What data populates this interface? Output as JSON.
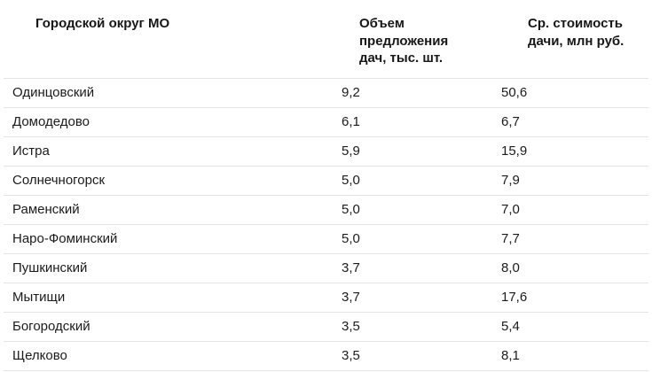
{
  "chart_data": {
    "type": "table",
    "title": "",
    "columns": [
      "Городской округ МО",
      "Объем предложения дач, тыс. шт.",
      "Ср. стоимость дачи, млн руб."
    ],
    "rows": [
      [
        "Одинцовский",
        "9,2",
        "50,6"
      ],
      [
        "Домодедово",
        "6,1",
        "6,7"
      ],
      [
        "Истра",
        "5,9",
        "15,9"
      ],
      [
        "Солнечногорск",
        "5,0",
        "7,9"
      ],
      [
        "Раменский",
        "5,0",
        "7,0"
      ],
      [
        "Наро-Фоминский",
        "5,0",
        "7,7"
      ],
      [
        "Пушкинский",
        "3,7",
        "8,0"
      ],
      [
        "Мытищи",
        "3,7",
        "17,6"
      ],
      [
        "Богородский",
        "3,5",
        "5,4"
      ],
      [
        "Щелково",
        "3,5",
        "8,1"
      ]
    ]
  },
  "style": {
    "text_color": "#1b1b1b",
    "divider_color": "#e4e4e4",
    "background_color": "#ffffff"
  }
}
